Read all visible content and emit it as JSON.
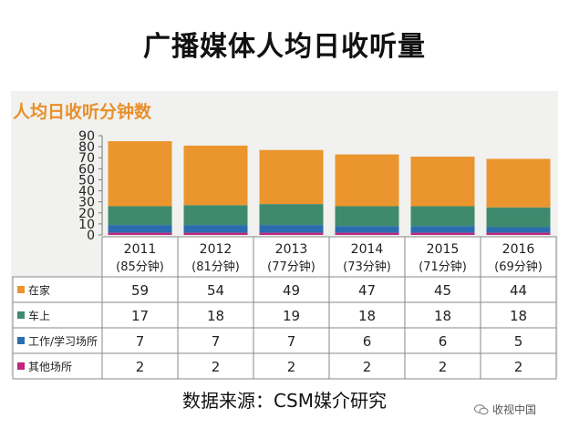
{
  "page_title": "广播媒体人均日收听量",
  "source": "数据来源：CSM媒介研究",
  "watermark": "收视中国",
  "chart_data": {
    "type": "bar",
    "stacked": true,
    "title": "人均日收听分钟数",
    "ylim": [
      0,
      90
    ],
    "yticks": [
      0,
      10,
      20,
      30,
      40,
      50,
      60,
      70,
      80,
      90
    ],
    "grid": false,
    "categories": [
      "2011",
      "2012",
      "2013",
      "2014",
      "2015",
      "2016"
    ],
    "category_totals": [
      "(85分钟)",
      "(81分钟)",
      "(77分钟)",
      "(73分钟)",
      "(71分钟)",
      "(69分钟)"
    ],
    "series": [
      {
        "name": "其他场所",
        "color": "#c0267c",
        "values": [
          2,
          2,
          2,
          2,
          2,
          2
        ]
      },
      {
        "name": "工作/学习场所",
        "color": "#2b6cb0",
        "values": [
          7,
          7,
          7,
          6,
          6,
          5
        ]
      },
      {
        "name": "车上",
        "color": "#3f8a6e",
        "values": [
          17,
          18,
          19,
          18,
          18,
          18
        ]
      },
      {
        "name": "在家",
        "color": "#eb952e",
        "values": [
          59,
          54,
          49,
          47,
          45,
          44
        ]
      }
    ],
    "table_order": [
      "在家",
      "车上",
      "工作/学习场所",
      "其他场所"
    ]
  }
}
